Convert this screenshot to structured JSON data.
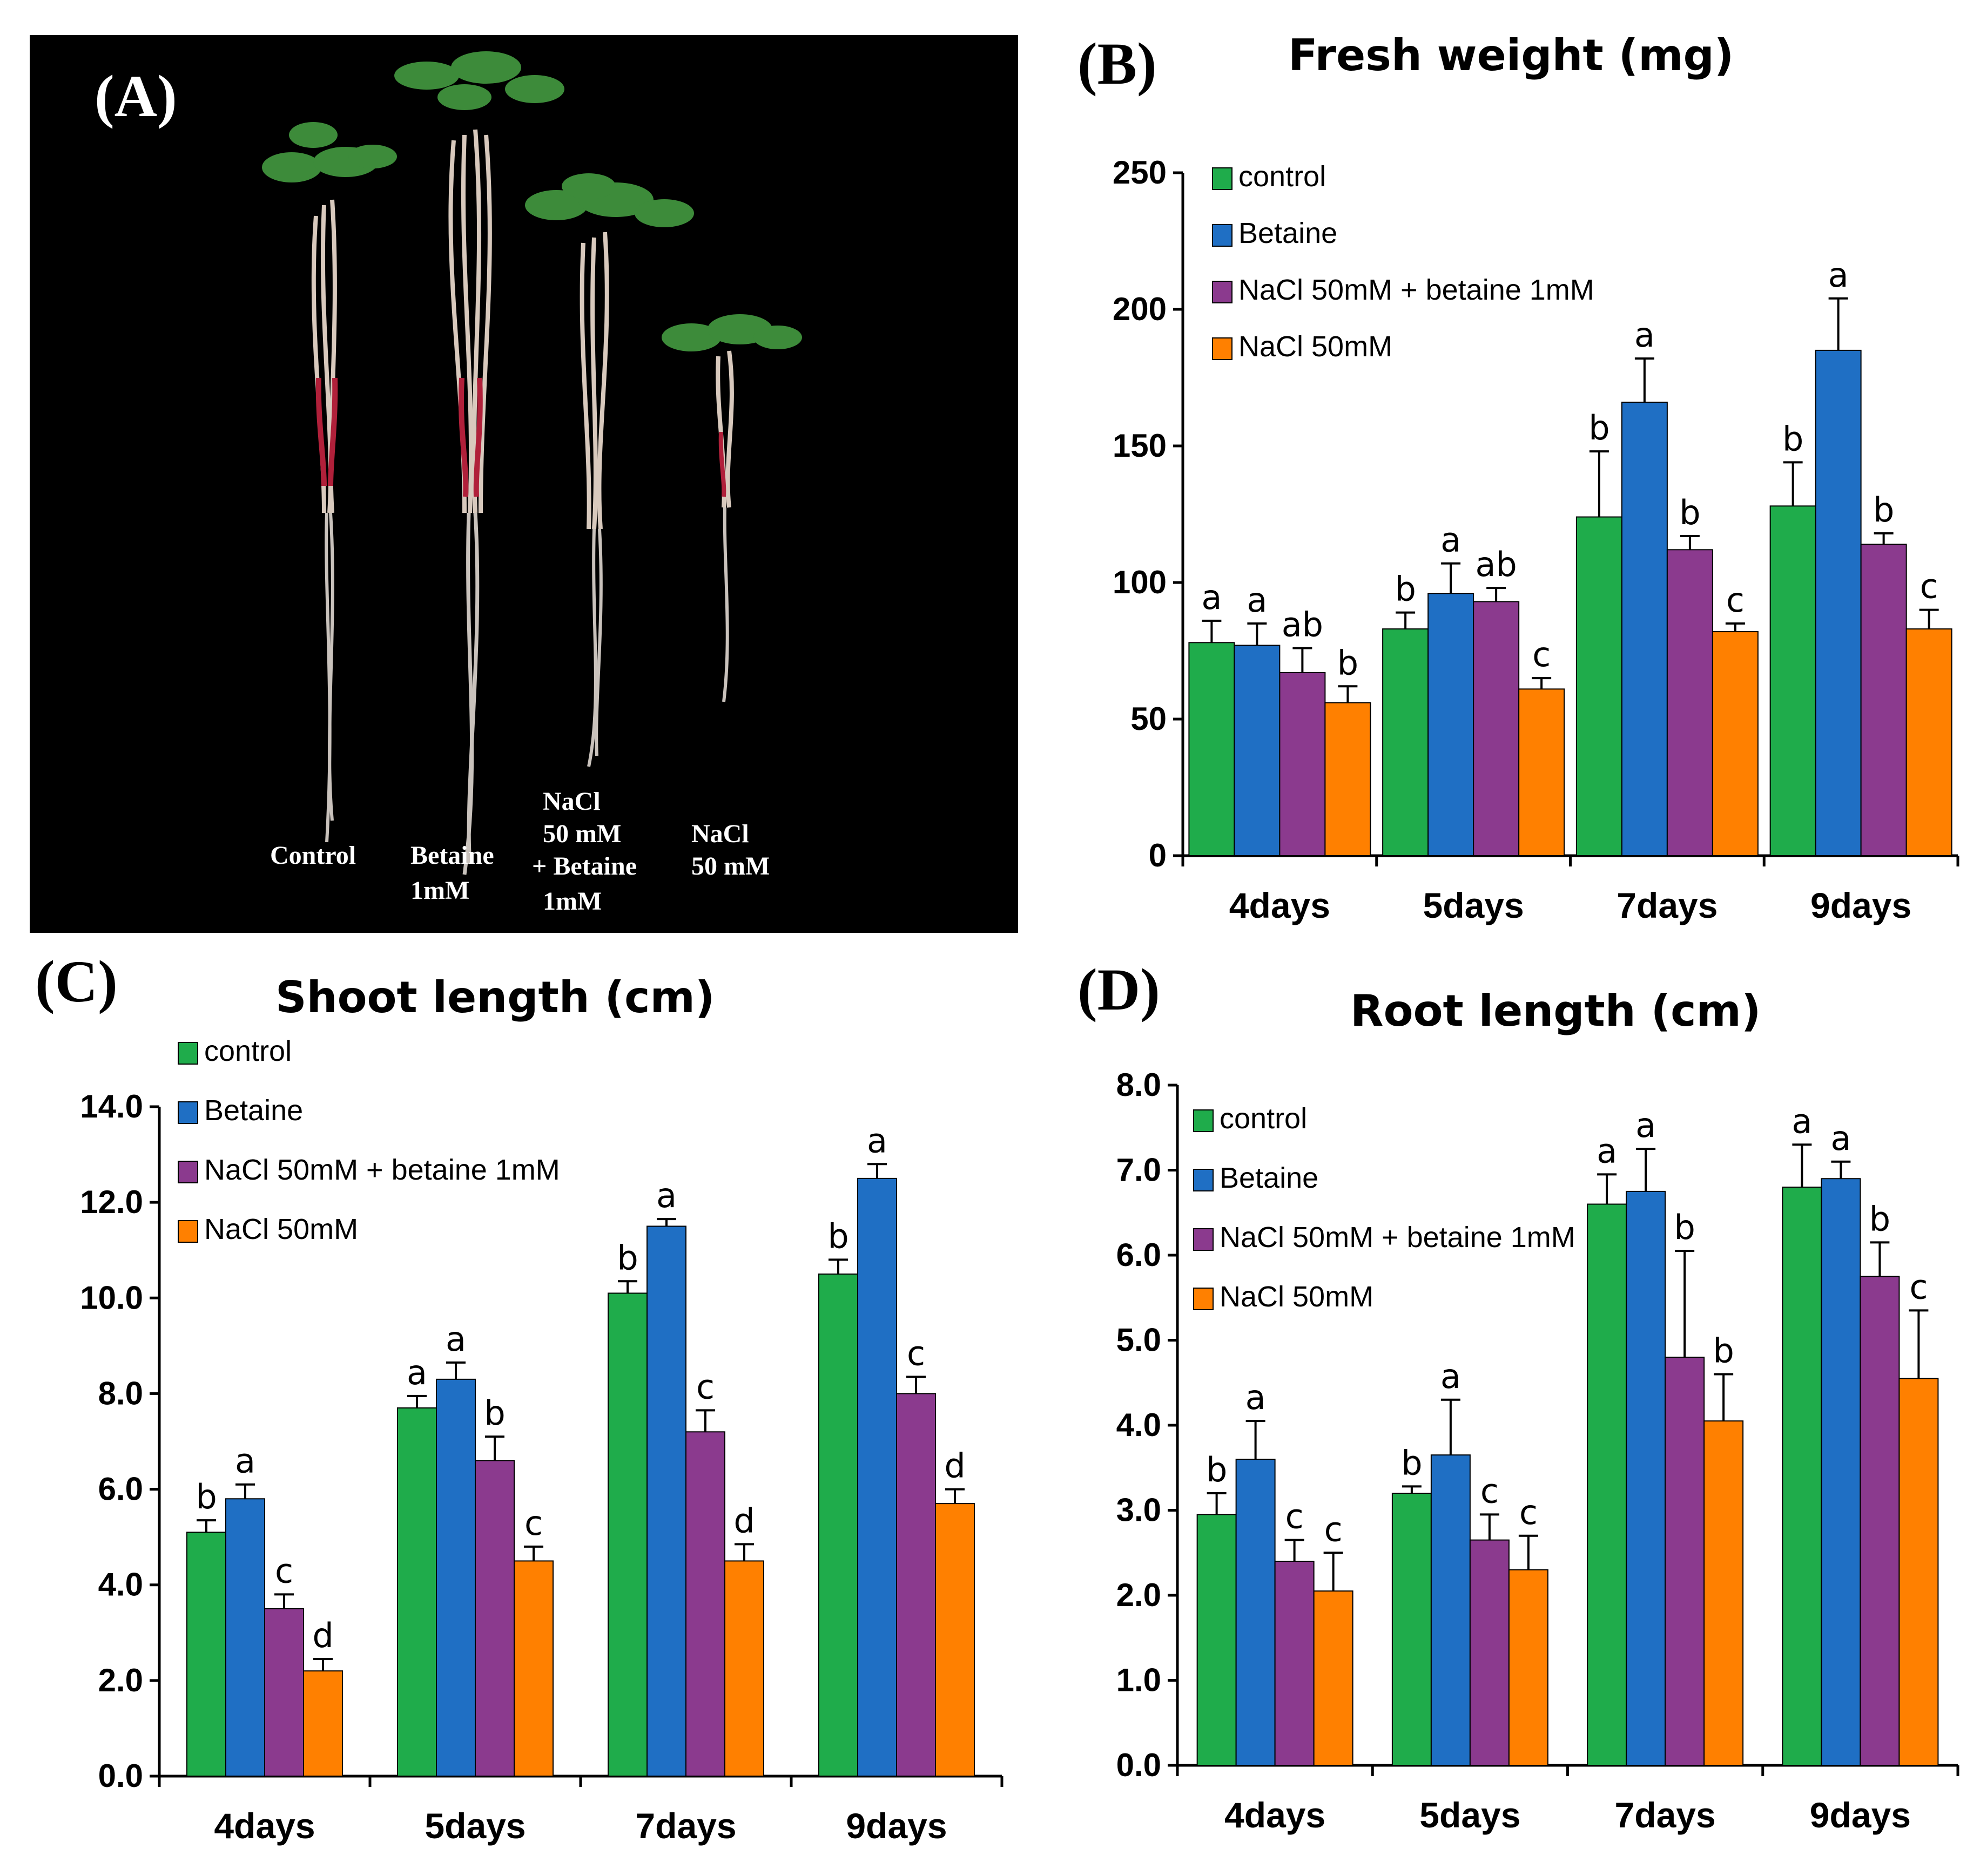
{
  "palette": {
    "control": "#1fac4b",
    "Betaine": "#1f6fc4",
    "NaCl 50mM + betaine 1mM": "#8b3a8e",
    "NaCl 50mM": "#ff8000"
  },
  "photo": {
    "panel_label": "(A)",
    "labels": {
      "control": "Control",
      "betaine_1": "Betaine",
      "betaine_2": "1mM",
      "mix_1": "NaCl",
      "mix_2": "50 mM",
      "mix_3": "+ Betaine",
      "mix_4": "1mM",
      "salt_1": "NaCl",
      "salt_2": "50 mM"
    }
  },
  "chart_data": [
    {
      "panel": "(B)",
      "type": "bar",
      "title": "Fresh weight (mg)",
      "categories": [
        "4days",
        "5days",
        "7days",
        "9days"
      ],
      "ylim": [
        0,
        250
      ],
      "yticks": [
        "0",
        "50",
        "100",
        "150",
        "200",
        "250"
      ],
      "legend": [
        "control",
        "Betaine",
        "NaCl 50mM + betaine 1mM",
        "NaCl 50mM"
      ],
      "series": [
        {
          "name": "control",
          "values": [
            78,
            83,
            124,
            128
          ],
          "errors": [
            8,
            6,
            24,
            16
          ],
          "labels": [
            "a",
            "b",
            "b",
            "b"
          ]
        },
        {
          "name": "Betaine",
          "values": [
            77,
            96,
            166,
            185
          ],
          "errors": [
            8,
            11,
            16,
            19
          ],
          "labels": [
            "a",
            "a",
            "a",
            "a"
          ]
        },
        {
          "name": "NaCl 50mM + betaine 1mM",
          "values": [
            67,
            93,
            112,
            114
          ],
          "errors": [
            9,
            5,
            5,
            4
          ],
          "labels": [
            "ab",
            "ab",
            "b",
            "b"
          ]
        },
        {
          "name": "NaCl 50mM",
          "values": [
            56,
            61,
            82,
            83
          ],
          "errors": [
            6,
            4,
            3,
            7
          ],
          "labels": [
            "b",
            "c",
            "c",
            "c"
          ]
        }
      ]
    },
    {
      "panel": "(C)",
      "type": "bar",
      "title": "Shoot length (cm)",
      "categories": [
        "4days",
        "5days",
        "7days",
        "9days"
      ],
      "ylim": [
        0,
        14
      ],
      "yticks": [
        "0.0",
        "2.0",
        "4.0",
        "6.0",
        "8.0",
        "10.0",
        "12.0",
        "14.0"
      ],
      "legend": [
        "control",
        "Betaine",
        "NaCl 50mM + betaine 1mM",
        "NaCl 50mM"
      ],
      "series": [
        {
          "name": "control",
          "values": [
            5.1,
            7.7,
            10.1,
            10.5
          ],
          "errors": [
            0.25,
            0.25,
            0.25,
            0.3
          ],
          "labels": [
            "b",
            "a",
            "b",
            "b"
          ]
        },
        {
          "name": "Betaine",
          "values": [
            5.8,
            8.3,
            11.5,
            12.5
          ],
          "errors": [
            0.3,
            0.35,
            0.15,
            0.3
          ],
          "labels": [
            "a",
            "a",
            "a",
            "a"
          ]
        },
        {
          "name": "NaCl 50mM + betaine 1mM",
          "values": [
            3.5,
            6.6,
            7.2,
            8.0
          ],
          "errors": [
            0.3,
            0.5,
            0.45,
            0.35
          ],
          "labels": [
            "c",
            "b",
            "c",
            "c"
          ]
        },
        {
          "name": "NaCl 50mM",
          "values": [
            2.2,
            4.5,
            4.5,
            5.7
          ],
          "errors": [
            0.25,
            0.3,
            0.35,
            0.3
          ],
          "labels": [
            "d",
            "c",
            "d",
            "d"
          ]
        }
      ]
    },
    {
      "panel": "(D)",
      "type": "bar",
      "title": "Root length (cm)",
      "categories": [
        "4days",
        "5days",
        "7days",
        "9days"
      ],
      "ylim": [
        0,
        8
      ],
      "yticks": [
        "0.0",
        "1.0",
        "2.0",
        "3.0",
        "4.0",
        "5.0",
        "6.0",
        "7.0",
        "8.0"
      ],
      "legend": [
        "control",
        "Betaine",
        "NaCl 50mM + betaine 1mM",
        "NaCl 50mM"
      ],
      "series": [
        {
          "name": "control",
          "values": [
            2.95,
            3.2,
            6.6,
            6.8
          ],
          "errors": [
            0.25,
            0.08,
            0.35,
            0.5
          ],
          "labels": [
            "b",
            "b",
            "a",
            "a"
          ]
        },
        {
          "name": "Betaine",
          "values": [
            3.6,
            3.65,
            6.75,
            6.9
          ],
          "errors": [
            0.45,
            0.65,
            0.5,
            0.2
          ],
          "labels": [
            "a",
            "a",
            "a",
            "a"
          ]
        },
        {
          "name": "NaCl 50mM + betaine 1mM",
          "values": [
            2.4,
            2.65,
            4.8,
            5.75
          ],
          "errors": [
            0.25,
            0.3,
            1.25,
            0.4
          ],
          "labels": [
            "c",
            "c",
            "b",
            "b"
          ]
        },
        {
          "name": "NaCl 50mM",
          "values": [
            2.05,
            2.3,
            4.05,
            4.55
          ],
          "errors": [
            0.45,
            0.4,
            0.55,
            0.8
          ],
          "labels": [
            "c",
            "c",
            "b",
            "c"
          ]
        }
      ]
    }
  ]
}
